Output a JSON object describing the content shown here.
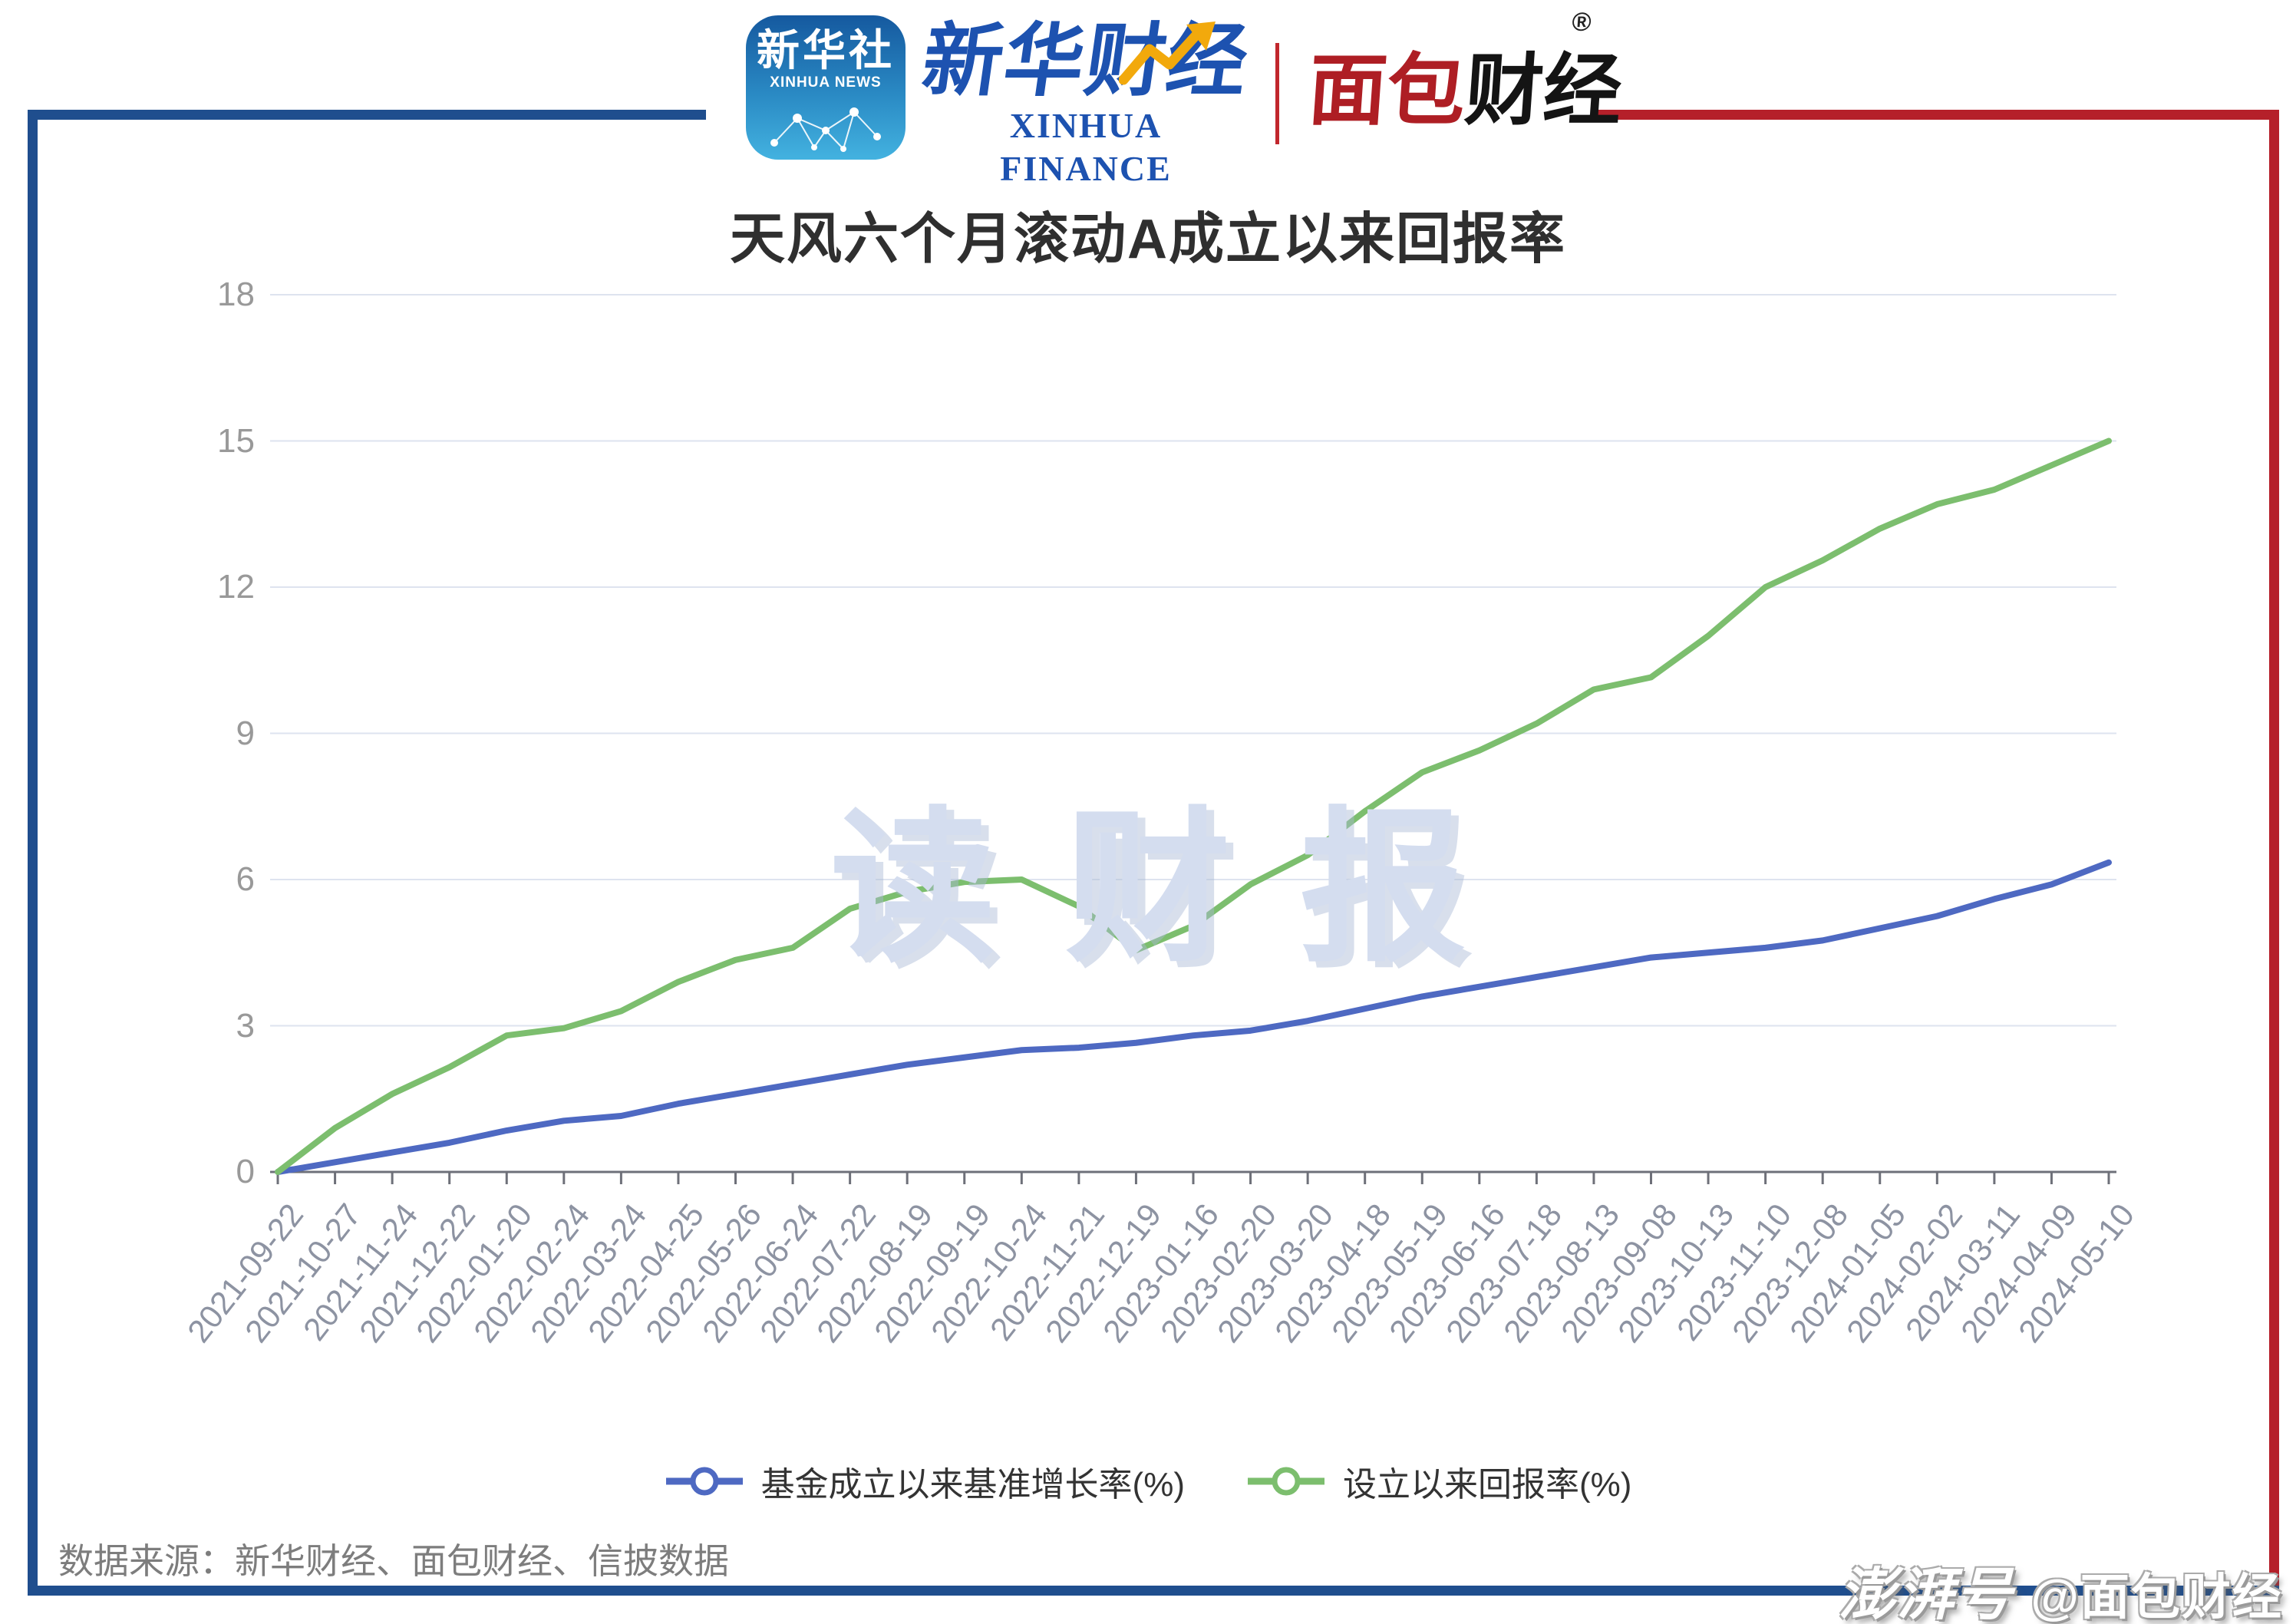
{
  "header": {
    "xinhua_app": {
      "cn": "新华社",
      "en": "XINHUA NEWS"
    },
    "xinhua_finance": {
      "cn": "新华财经",
      "en": "XINHUA FINANCE"
    },
    "mianbao": {
      "cn_red": "面包",
      "cn_black": "财经",
      "reg": "®"
    }
  },
  "chart_data": {
    "type": "line",
    "title": "天风六个月滚动A成立以来回报率",
    "categories": [
      "2021-09-22",
      "2021-10-27",
      "2021-11-24",
      "2021-12-22",
      "2022-01-20",
      "2022-02-24",
      "2022-03-24",
      "2022-04-25",
      "2022-05-26",
      "2022-06-24",
      "2022-07-22",
      "2022-08-19",
      "2022-09-19",
      "2022-10-24",
      "2022-11-21",
      "2022-12-19",
      "2023-01-16",
      "2023-02-20",
      "2023-03-20",
      "2023-04-18",
      "2023-05-19",
      "2023-06-16",
      "2023-07-18",
      "2023-08-13",
      "2023-09-08",
      "2023-10-13",
      "2023-11-10",
      "2023-12-08",
      "2024-01-05",
      "2024-02-02",
      "2024-03-11",
      "2024-04-09",
      "2024-05-10"
    ],
    "series": [
      {
        "name": "基金成立以来基准增长率(%)",
        "color": "#4E69C2",
        "values": [
          0,
          0.2,
          0.4,
          0.6,
          0.85,
          1.05,
          1.15,
          1.4,
          1.6,
          1.8,
          2.0,
          2.2,
          2.35,
          2.5,
          2.55,
          2.65,
          2.8,
          2.9,
          3.1,
          3.35,
          3.6,
          3.8,
          4.0,
          4.2,
          4.4,
          4.5,
          4.6,
          4.75,
          5.0,
          5.25,
          5.6,
          5.9,
          6.35
        ]
      },
      {
        "name": "设立以来回报率(%)",
        "color": "#7CBE6E",
        "values": [
          0,
          0.9,
          1.6,
          2.15,
          2.8,
          2.95,
          3.3,
          3.9,
          4.35,
          4.6,
          5.4,
          5.75,
          5.95,
          6.0,
          5.45,
          4.55,
          5.05,
          5.9,
          6.5,
          7.4,
          8.2,
          8.65,
          9.2,
          9.9,
          10.15,
          11.0,
          12.0,
          12.55,
          13.2,
          13.7,
          14.0,
          14.5,
          15.0
        ]
      }
    ],
    "ylim": [
      0,
      18
    ],
    "yticks": [
      0,
      3,
      6,
      9,
      12,
      15,
      18
    ],
    "grid": true,
    "legend_position": "bottom",
    "x_label_rotation": -52
  },
  "watermarks": {
    "center": "读财报",
    "brand": "澎湃号",
    "handle": "@面包财经"
  },
  "footer": {
    "source": "数据来源：新华财经、面包财经、信披数据"
  },
  "colors": {
    "frame_blue": "#1F4E8E",
    "frame_red": "#B5202A",
    "grid": "#DEE3EF",
    "axis": "#6E7079",
    "benchmark": "#4E69C2",
    "fund_return": "#7CBE6E",
    "watermark": "#D4DDEF",
    "title_text": "#2F2F2F",
    "axis_label": "#999999",
    "x_label": "#8D93A2",
    "source_text": "#7D7D7D"
  }
}
